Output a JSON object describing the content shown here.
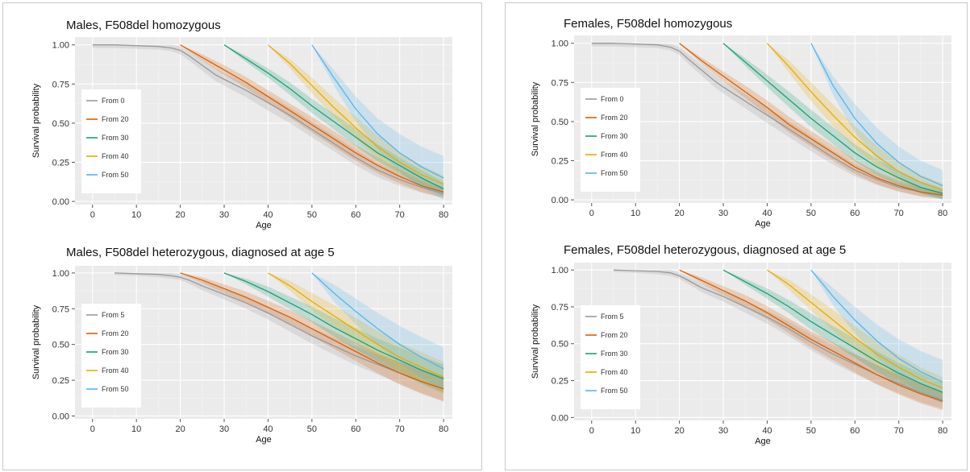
{
  "chart_data": [
    {
      "type": "line",
      "title": "Males, F508del homozygous",
      "xlabel": "Age",
      "ylabel": "Survival probability",
      "xlim": [
        -4,
        82
      ],
      "ylim": [
        -0.02,
        1.05
      ],
      "xticks": [
        "0",
        "10",
        "20",
        "30",
        "40",
        "50",
        "60",
        "70",
        "80"
      ],
      "yticks": [
        "0.00",
        "0.25",
        "0.50",
        "0.75",
        "1.00"
      ],
      "legend_position": "left",
      "series": [
        {
          "name": "From 0",
          "color": "#999999",
          "x": [
            0,
            5,
            10,
            15,
            18,
            20,
            22,
            25,
            28,
            30,
            35,
            40,
            45,
            50,
            55,
            60,
            65,
            70,
            75,
            80
          ],
          "y": [
            1,
            1,
            0.995,
            0.99,
            0.98,
            0.965,
            0.93,
            0.87,
            0.81,
            0.78,
            0.71,
            0.63,
            0.55,
            0.46,
            0.37,
            0.28,
            0.2,
            0.14,
            0.09,
            0.05
          ],
          "band": [
            0.02,
            0.02,
            0.02,
            0.02,
            0.02,
            0.025,
            0.03,
            0.035,
            0.04,
            0.04,
            0.045,
            0.05,
            0.05,
            0.05,
            0.05,
            0.05,
            0.045,
            0.04,
            0.035,
            0.03
          ]
        },
        {
          "name": "From 20",
          "color": "#d95f02",
          "x": [
            20,
            25,
            30,
            35,
            40,
            45,
            50,
            55,
            60,
            65,
            70,
            75,
            80
          ],
          "y": [
            1,
            0.92,
            0.84,
            0.76,
            0.67,
            0.58,
            0.49,
            0.4,
            0.31,
            0.23,
            0.16,
            0.1,
            0.06
          ],
          "band": [
            0,
            0.02,
            0.03,
            0.035,
            0.04,
            0.045,
            0.05,
            0.05,
            0.05,
            0.05,
            0.045,
            0.04,
            0.035
          ]
        },
        {
          "name": "From 30",
          "color": "#1b9e77",
          "x": [
            30,
            35,
            40,
            45,
            50,
            55,
            60,
            65,
            70,
            75,
            80
          ],
          "y": [
            1,
            0.91,
            0.82,
            0.72,
            0.61,
            0.51,
            0.41,
            0.31,
            0.23,
            0.15,
            0.08
          ],
          "band": [
            0,
            0.02,
            0.03,
            0.04,
            0.045,
            0.05,
            0.055,
            0.055,
            0.05,
            0.05,
            0.045
          ]
        },
        {
          "name": "From 40",
          "color": "#e6ab02",
          "x": [
            40,
            45,
            50,
            55,
            60,
            65,
            70,
            75,
            80
          ],
          "y": [
            1,
            0.88,
            0.74,
            0.6,
            0.47,
            0.35,
            0.25,
            0.17,
            0.11
          ],
          "band": [
            0,
            0.03,
            0.05,
            0.06,
            0.07,
            0.07,
            0.065,
            0.06,
            0.055
          ]
        },
        {
          "name": "From 50",
          "color": "#56b4e9",
          "x": [
            50,
            55,
            60,
            65,
            70,
            75,
            80
          ],
          "y": [
            1,
            0.79,
            0.59,
            0.43,
            0.31,
            0.22,
            0.15
          ],
          "band": [
            0,
            0.05,
            0.08,
            0.1,
            0.12,
            0.13,
            0.14
          ]
        }
      ]
    },
    {
      "type": "line",
      "title": "Males, F508del heterozygous, diagnosed at age 5",
      "xlabel": "Age",
      "ylabel": "Survival probability",
      "xlim": [
        -4,
        82
      ],
      "ylim": [
        -0.02,
        1.05
      ],
      "xticks": [
        "0",
        "10",
        "20",
        "30",
        "40",
        "50",
        "60",
        "70",
        "80"
      ],
      "yticks": [
        "0.00",
        "0.25",
        "0.50",
        "0.75",
        "1.00"
      ],
      "legend_position": "left",
      "series": [
        {
          "name": "From 5",
          "color": "#999999",
          "x": [
            5,
            10,
            15,
            18,
            20,
            22,
            25,
            30,
            35,
            40,
            45,
            50,
            55,
            60,
            65,
            70,
            75,
            80
          ],
          "y": [
            1,
            0.995,
            0.99,
            0.98,
            0.97,
            0.95,
            0.91,
            0.85,
            0.79,
            0.72,
            0.64,
            0.56,
            0.49,
            0.42,
            0.36,
            0.3,
            0.24,
            0.19
          ],
          "band": [
            0.015,
            0.015,
            0.02,
            0.02,
            0.02,
            0.025,
            0.03,
            0.035,
            0.04,
            0.045,
            0.05,
            0.055,
            0.06,
            0.065,
            0.07,
            0.075,
            0.08,
            0.085
          ]
        },
        {
          "name": "From 20",
          "color": "#d95f02",
          "x": [
            20,
            25,
            30,
            35,
            40,
            45,
            50,
            55,
            60,
            65,
            70,
            75,
            80
          ],
          "y": [
            1,
            0.95,
            0.89,
            0.83,
            0.76,
            0.69,
            0.61,
            0.53,
            0.45,
            0.37,
            0.3,
            0.24,
            0.19
          ],
          "band": [
            0,
            0.02,
            0.03,
            0.04,
            0.045,
            0.05,
            0.055,
            0.06,
            0.065,
            0.07,
            0.08,
            0.085,
            0.09
          ]
        },
        {
          "name": "From 30",
          "color": "#1b9e77",
          "x": [
            30,
            35,
            40,
            45,
            50,
            55,
            60,
            65,
            70,
            75,
            80
          ],
          "y": [
            1,
            0.94,
            0.87,
            0.79,
            0.71,
            0.62,
            0.54,
            0.46,
            0.39,
            0.32,
            0.26
          ],
          "band": [
            0,
            0.02,
            0.035,
            0.045,
            0.055,
            0.065,
            0.075,
            0.08,
            0.09,
            0.095,
            0.1
          ]
        },
        {
          "name": "From 40",
          "color": "#e6ab02",
          "x": [
            40,
            45,
            50,
            55,
            60,
            65,
            70,
            75,
            80
          ],
          "y": [
            1,
            0.91,
            0.8,
            0.7,
            0.6,
            0.5,
            0.41,
            0.34,
            0.27
          ],
          "band": [
            0,
            0.035,
            0.06,
            0.075,
            0.085,
            0.095,
            0.1,
            0.105,
            0.11
          ]
        },
        {
          "name": "From 50",
          "color": "#56b4e9",
          "x": [
            50,
            55,
            60,
            65,
            70,
            75,
            80
          ],
          "y": [
            1,
            0.86,
            0.73,
            0.61,
            0.5,
            0.41,
            0.33
          ],
          "band": [
            0,
            0.06,
            0.09,
            0.11,
            0.13,
            0.14,
            0.15
          ]
        }
      ]
    },
    {
      "type": "line",
      "title": "Females, F508del homozygous",
      "xlabel": "Age",
      "ylabel": "Survival probability",
      "xlim": [
        -4,
        82
      ],
      "ylim": [
        -0.02,
        1.05
      ],
      "xticks": [
        "0",
        "10",
        "20",
        "30",
        "40",
        "50",
        "60",
        "70",
        "80"
      ],
      "yticks": [
        "0.00",
        "0.25",
        "0.50",
        "0.75",
        "1.00"
      ],
      "legend_position": "left",
      "series": [
        {
          "name": "From 0",
          "color": "#999999",
          "x": [
            0,
            5,
            10,
            15,
            18,
            20,
            22,
            25,
            28,
            30,
            35,
            40,
            45,
            50,
            55,
            60,
            65,
            70,
            75,
            80
          ],
          "y": [
            1,
            1,
            0.995,
            0.99,
            0.975,
            0.95,
            0.9,
            0.83,
            0.76,
            0.72,
            0.63,
            0.54,
            0.45,
            0.36,
            0.27,
            0.19,
            0.13,
            0.08,
            0.05,
            0.03
          ],
          "band": [
            0.02,
            0.02,
            0.02,
            0.02,
            0.02,
            0.025,
            0.03,
            0.035,
            0.04,
            0.04,
            0.045,
            0.05,
            0.05,
            0.05,
            0.045,
            0.04,
            0.035,
            0.03,
            0.025,
            0.02
          ]
        },
        {
          "name": "From 20",
          "color": "#d95f02",
          "x": [
            20,
            25,
            30,
            35,
            40,
            45,
            50,
            55,
            60,
            65,
            70,
            75,
            80
          ],
          "y": [
            1,
            0.89,
            0.79,
            0.69,
            0.59,
            0.48,
            0.39,
            0.3,
            0.21,
            0.14,
            0.09,
            0.05,
            0.03
          ],
          "band": [
            0,
            0.02,
            0.03,
            0.04,
            0.045,
            0.05,
            0.05,
            0.05,
            0.045,
            0.04,
            0.035,
            0.03,
            0.025
          ]
        },
        {
          "name": "From 30",
          "color": "#1b9e77",
          "x": [
            30,
            35,
            40,
            45,
            50,
            55,
            60,
            65,
            70,
            75,
            80
          ],
          "y": [
            1,
            0.88,
            0.76,
            0.64,
            0.52,
            0.41,
            0.3,
            0.21,
            0.14,
            0.08,
            0.04
          ],
          "band": [
            0,
            0.025,
            0.04,
            0.05,
            0.055,
            0.055,
            0.055,
            0.05,
            0.045,
            0.04,
            0.035
          ]
        },
        {
          "name": "From 40",
          "color": "#e6ab02",
          "x": [
            40,
            45,
            50,
            55,
            60,
            65,
            70,
            75,
            80
          ],
          "y": [
            1,
            0.85,
            0.69,
            0.54,
            0.4,
            0.28,
            0.18,
            0.11,
            0.06
          ],
          "band": [
            0,
            0.04,
            0.06,
            0.07,
            0.07,
            0.065,
            0.06,
            0.05,
            0.045
          ]
        },
        {
          "name": "From 50",
          "color": "#56b4e9",
          "x": [
            50,
            55,
            60,
            65,
            70,
            75,
            80
          ],
          "y": [
            1,
            0.73,
            0.52,
            0.36,
            0.24,
            0.15,
            0.09
          ],
          "band": [
            0,
            0.06,
            0.09,
            0.1,
            0.1,
            0.1,
            0.1
          ]
        }
      ]
    },
    {
      "type": "line",
      "title": "Females, F508del heterozygous, diagnosed at age 5",
      "xlabel": "Age",
      "ylabel": "Survival probability",
      "xlim": [
        -4,
        82
      ],
      "ylim": [
        -0.02,
        1.05
      ],
      "xticks": [
        "0",
        "10",
        "20",
        "30",
        "40",
        "50",
        "60",
        "70",
        "80"
      ],
      "yticks": [
        "0.00",
        "0.25",
        "0.50",
        "0.75",
        "1.00"
      ],
      "legend_position": "left",
      "series": [
        {
          "name": "From 5",
          "color": "#999999",
          "x": [
            5,
            10,
            15,
            18,
            20,
            22,
            25,
            30,
            35,
            40,
            45,
            50,
            55,
            60,
            65,
            70,
            75,
            80
          ],
          "y": [
            1,
            0.995,
            0.99,
            0.98,
            0.96,
            0.93,
            0.88,
            0.82,
            0.75,
            0.68,
            0.6,
            0.51,
            0.43,
            0.36,
            0.29,
            0.23,
            0.17,
            0.12
          ],
          "band": [
            0.015,
            0.015,
            0.02,
            0.02,
            0.02,
            0.025,
            0.03,
            0.035,
            0.04,
            0.045,
            0.05,
            0.055,
            0.06,
            0.065,
            0.065,
            0.065,
            0.065,
            0.06
          ]
        },
        {
          "name": "From 20",
          "color": "#d95f02",
          "x": [
            20,
            25,
            30,
            35,
            40,
            45,
            50,
            55,
            60,
            65,
            70,
            75,
            80
          ],
          "y": [
            1,
            0.93,
            0.86,
            0.79,
            0.71,
            0.62,
            0.53,
            0.45,
            0.37,
            0.29,
            0.22,
            0.16,
            0.11
          ],
          "band": [
            0,
            0.02,
            0.03,
            0.04,
            0.045,
            0.05,
            0.055,
            0.06,
            0.065,
            0.065,
            0.065,
            0.065,
            0.06
          ]
        },
        {
          "name": "From 30",
          "color": "#1b9e77",
          "x": [
            30,
            35,
            40,
            45,
            50,
            55,
            60,
            65,
            70,
            75,
            80
          ],
          "y": [
            1,
            0.92,
            0.84,
            0.75,
            0.65,
            0.56,
            0.47,
            0.38,
            0.3,
            0.23,
            0.17
          ],
          "band": [
            0,
            0.02,
            0.035,
            0.045,
            0.055,
            0.06,
            0.065,
            0.07,
            0.07,
            0.07,
            0.065
          ]
        },
        {
          "name": "From 40",
          "color": "#e6ab02",
          "x": [
            40,
            45,
            50,
            55,
            60,
            65,
            70,
            75,
            80
          ],
          "y": [
            1,
            0.9,
            0.78,
            0.66,
            0.54,
            0.43,
            0.34,
            0.26,
            0.2
          ],
          "band": [
            0,
            0.035,
            0.055,
            0.07,
            0.08,
            0.085,
            0.085,
            0.08,
            0.075
          ]
        },
        {
          "name": "From 50",
          "color": "#56b4e9",
          "x": [
            50,
            55,
            60,
            65,
            70,
            75,
            80
          ],
          "y": [
            1,
            0.82,
            0.66,
            0.52,
            0.4,
            0.31,
            0.24
          ],
          "band": [
            0,
            0.06,
            0.09,
            0.11,
            0.13,
            0.14,
            0.15
          ]
        }
      ]
    }
  ]
}
